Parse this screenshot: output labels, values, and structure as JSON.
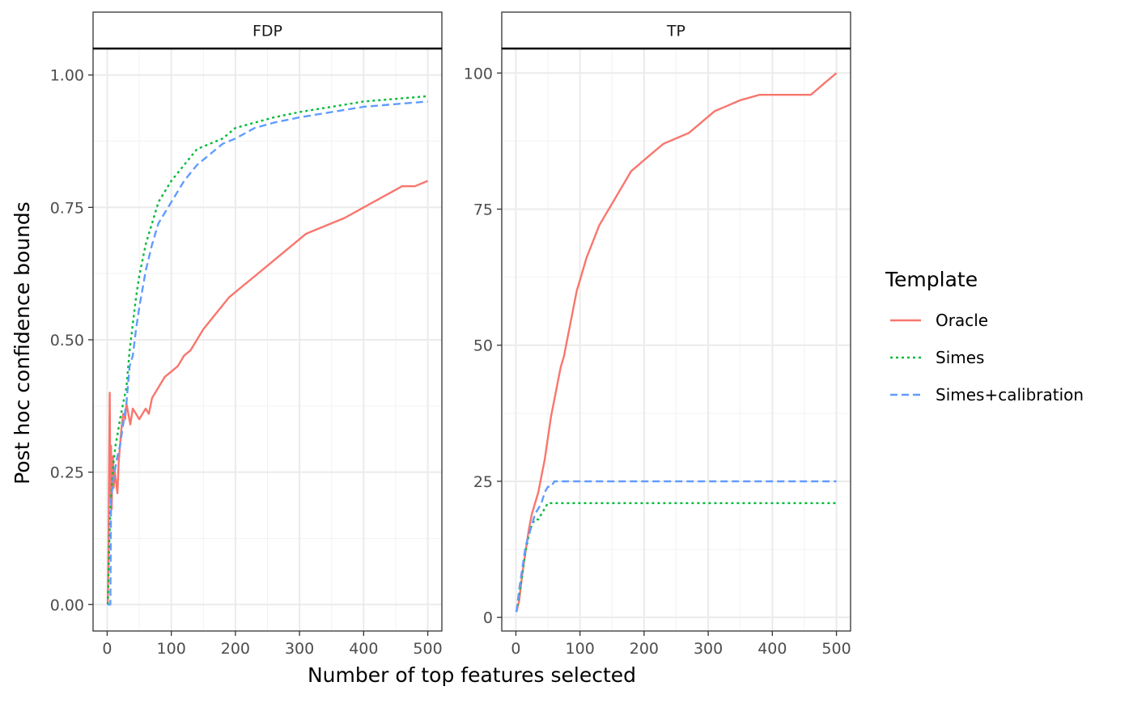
{
  "chart_data": {
    "type": "line",
    "xlabel": "Number of top features selected",
    "ylabel": "Post hoc confidence bounds",
    "legend": {
      "title": "Template",
      "placement": "right",
      "entries": [
        {
          "name": "Oracle",
          "color": "#F8766D",
          "dash": "solid"
        },
        {
          "name": "Simes",
          "color": "#00BA38",
          "dash": "dotted"
        },
        {
          "name": "Simes+calibration",
          "color": "#619CFF",
          "dash": "dashed"
        }
      ]
    },
    "grid": true,
    "panels": [
      {
        "strip": "FDP",
        "xlim": [
          -22,
          522
        ],
        "ylim": [
          -0.05,
          1.05
        ],
        "xticks": [
          0,
          100,
          200,
          300,
          400,
          500
        ],
        "xtick_labels": [
          "0",
          "100",
          "200",
          "300",
          "400",
          "500"
        ],
        "yticks": [
          0,
          0.25,
          0.5,
          0.75,
          1
        ],
        "ytick_labels": [
          "0.00",
          "0.25",
          "0.50",
          "0.75",
          "1.00"
        ],
        "series": [
          {
            "name": "Oracle",
            "x": [
              1,
              2,
              3,
              4,
              5,
              6,
              7,
              8,
              9,
              10,
              12,
              14,
              16,
              18,
              20,
              22,
              25,
              28,
              30,
              33,
              36,
              40,
              45,
              50,
              55,
              60,
              65,
              70,
              80,
              90,
              100,
              110,
              120,
              130,
              150,
              170,
              190,
              210,
              230,
              250,
              270,
              290,
              310,
              330,
              350,
              370,
              400,
              430,
              460,
              480,
              500
            ],
            "y": [
              0,
              0.1,
              0.25,
              0.4,
              0.2,
              0.3,
              0.18,
              0.25,
              0.28,
              0.22,
              0.25,
              0.23,
              0.21,
              0.27,
              0.3,
              0.33,
              0.36,
              0.35,
              0.38,
              0.36,
              0.34,
              0.37,
              0.36,
              0.35,
              0.36,
              0.37,
              0.36,
              0.39,
              0.41,
              0.43,
              0.44,
              0.45,
              0.47,
              0.48,
              0.52,
              0.55,
              0.58,
              0.6,
              0.62,
              0.64,
              0.66,
              0.68,
              0.7,
              0.71,
              0.72,
              0.73,
              0.75,
              0.77,
              0.79,
              0.79,
              0.8
            ]
          },
          {
            "name": "Simes",
            "x": [
              1,
              3,
              5,
              7,
              10,
              13,
              16,
              20,
              25,
              30,
              35,
              40,
              45,
              50,
              60,
              70,
              80,
              90,
              100,
              120,
              140,
              160,
              180,
              200,
              230,
              260,
              300,
              350,
              400,
              450,
              500
            ],
            "y": [
              0,
              0.1,
              0.18,
              0.22,
              0.27,
              0.3,
              0.32,
              0.35,
              0.38,
              0.41,
              0.48,
              0.53,
              0.58,
              0.62,
              0.68,
              0.72,
              0.76,
              0.78,
              0.8,
              0.83,
              0.86,
              0.87,
              0.88,
              0.9,
              0.91,
              0.92,
              0.93,
              0.94,
              0.95,
              0.955,
              0.96
            ]
          },
          {
            "name": "Simes+calibration",
            "x": [
              1,
              3,
              5,
              6,
              8,
              10,
              13,
              16,
              20,
              25,
              30,
              35,
              40,
              45,
              50,
              60,
              70,
              80,
              90,
              100,
              120,
              140,
              160,
              180,
              200,
              230,
              260,
              300,
              350,
              400,
              450,
              500
            ],
            "y": [
              0,
              0,
              0,
              0.2,
              0.22,
              0.24,
              0.26,
              0.28,
              0.3,
              0.34,
              0.38,
              0.45,
              0.47,
              0.52,
              0.56,
              0.63,
              0.68,
              0.72,
              0.74,
              0.76,
              0.8,
              0.83,
              0.85,
              0.87,
              0.88,
              0.9,
              0.91,
              0.92,
              0.93,
              0.94,
              0.945,
              0.95
            ]
          }
        ]
      },
      {
        "strip": "TP",
        "xlim": [
          -22,
          522
        ],
        "ylim": [
          -2.5,
          104.5
        ],
        "xticks": [
          0,
          100,
          200,
          300,
          400,
          500
        ],
        "xtick_labels": [
          "0",
          "100",
          "200",
          "300",
          "400",
          "500"
        ],
        "yticks": [
          0,
          25,
          50,
          75,
          100
        ],
        "ytick_labels": [
          "0",
          "25",
          "50",
          "75",
          "100"
        ],
        "series": [
          {
            "name": "Oracle",
            "x": [
              1,
              5,
              10,
              15,
              20,
              25,
              30,
              35,
              40,
              45,
              50,
              55,
              60,
              65,
              70,
              75,
              80,
              85,
              90,
              95,
              100,
              110,
              120,
              130,
              140,
              150,
              160,
              170,
              180,
              190,
              200,
              210,
              220,
              230,
              250,
              270,
              290,
              310,
              330,
              350,
              380,
              410,
              440,
              460,
              470,
              480,
              490,
              500
            ],
            "y": [
              1,
              3,
              8,
              12,
              16,
              19,
              21,
              23,
              26,
              29,
              33,
              37,
              40,
              43,
              46,
              48,
              51,
              54,
              57,
              60,
              62,
              66,
              69,
              72,
              74,
              76,
              78,
              80,
              82,
              83,
              84,
              85,
              86,
              87,
              88,
              89,
              91,
              93,
              94,
              95,
              96,
              96,
              96,
              96,
              97,
              98,
              99,
              100
            ]
          },
          {
            "name": "Simes",
            "x": [
              1,
              5,
              10,
              15,
              20,
              25,
              30,
              35,
              40,
              45,
              50,
              500
            ],
            "y": [
              1,
              4,
              8,
              12,
              15,
              17,
              18,
              18,
              19,
              20,
              21,
              21
            ]
          },
          {
            "name": "Simes+calibration",
            "x": [
              1,
              5,
              10,
              15,
              20,
              25,
              30,
              35,
              40,
              45,
              50,
              55,
              60,
              500
            ],
            "y": [
              1,
              5,
              9,
              13,
              15,
              17,
              19,
              20,
              21,
              23,
              24,
              24,
              25,
              25
            ]
          }
        ]
      }
    ]
  }
}
